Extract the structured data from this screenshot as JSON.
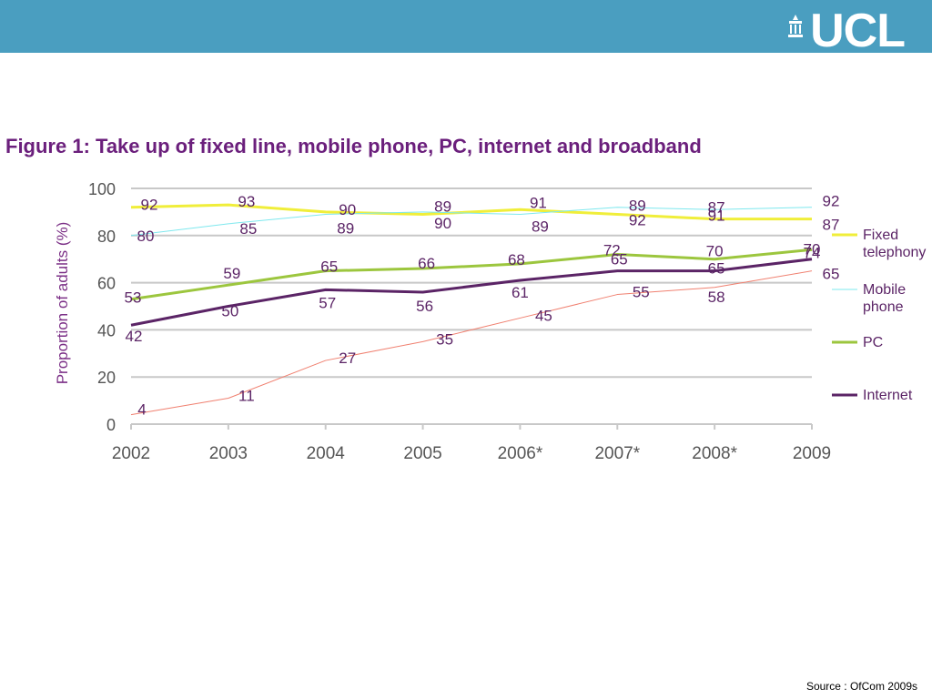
{
  "header": {
    "logo_text": "UCL",
    "bar_color": "#4a9ec0"
  },
  "figure_title": "Figure 1: Take up of fixed line, mobile phone, PC, internet and broadband",
  "source_note": "Source : OfCom 2009s",
  "chart_data": {
    "type": "line",
    "title": "Figure 1: Take up of fixed line, mobile phone, PC, internet and broadband",
    "xlabel": "",
    "ylabel": "Proportion of adults (%)",
    "ylim": [
      0,
      100
    ],
    "yticks": [
      0,
      20,
      40,
      60,
      80,
      100
    ],
    "categories": [
      "2002",
      "2003",
      "2004",
      "2005",
      "2006*",
      "2007*",
      "2008*",
      "2009"
    ],
    "grid": true,
    "legend_position": "right",
    "series": [
      {
        "name": "Fixed telephony",
        "values": [
          92,
          93,
          90,
          89,
          91,
          89,
          87,
          87
        ],
        "color": "#f0ee3a"
      },
      {
        "name": "Mobile phone",
        "values": [
          80,
          85,
          89,
          90,
          89,
          92,
          91,
          92
        ],
        "color": "#7ee8ee"
      },
      {
        "name": "PC",
        "values": [
          53,
          59,
          65,
          66,
          68,
          72,
          70,
          74
        ],
        "color": "#9cc63e"
      },
      {
        "name": "Internet",
        "values": [
          42,
          50,
          57,
          56,
          61,
          65,
          65,
          70
        ],
        "color": "#5b2466"
      },
      {
        "name": "",
        "values": [
          4,
          11,
          27,
          35,
          45,
          55,
          58,
          65
        ],
        "color": "#f08070"
      }
    ]
  }
}
